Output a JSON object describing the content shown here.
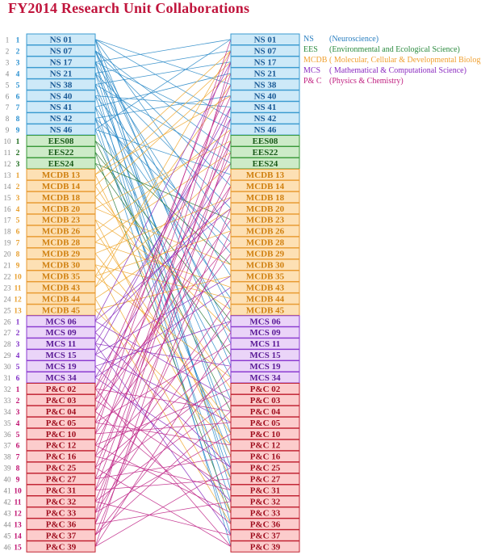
{
  "title": "FY2014  Research Unit Collaborations",
  "legend": [
    {
      "abbr": "NS",
      "desc": "(Neuroscience)",
      "color": "#2a7fc0"
    },
    {
      "abbr": "EES",
      "desc": "(Environmental and Ecological Science)",
      "color": "#2b8a3e"
    },
    {
      "abbr": "MCDB",
      "desc": "( Molecular, Cellular & Developmental Biology)",
      "color": "#f0a030"
    },
    {
      "abbr": "MCS",
      "desc": "( Mathematical & Computational Science)",
      "color": "#8a2ac0"
    },
    {
      "abbr": "P& C",
      "desc": "(Physics & Chemistry)",
      "color": "#c02080"
    }
  ],
  "groups": {
    "NS": {
      "fill": "#cde9f8",
      "stroke": "#3a9ad0",
      "text": "#1a5a96",
      "index_color": "#2a90d0",
      "line": "#2a8ac8"
    },
    "EES": {
      "fill": "#cdebc8",
      "stroke": "#3a9a3a",
      "text": "#1a5a1a",
      "index_color": "#1a6a1a",
      "line": "#2b7a3a"
    },
    "MCDB": {
      "fill": "#fde0b4",
      "stroke": "#e89a30",
      "text": "#d08010",
      "index_color": "#e8a030",
      "line": "#f0a830"
    },
    "MCS": {
      "fill": "#ead4f8",
      "stroke": "#8a3ad0",
      "text": "#5a1a96",
      "index_color": "#8030c8",
      "line": "#8a30c0"
    },
    "PC": {
      "fill": "#fccccc",
      "stroke": "#c02030",
      "text": "#a01020",
      "index_color": "#c01070",
      "line": "#c02888"
    }
  },
  "units": [
    {
      "label": "NS 01",
      "group": "NS",
      "idx": "1"
    },
    {
      "label": "NS 07",
      "group": "NS",
      "idx": "2"
    },
    {
      "label": "NS 17",
      "group": "NS",
      "idx": "3"
    },
    {
      "label": "NS 21",
      "group": "NS",
      "idx": "4"
    },
    {
      "label": "NS 38",
      "group": "NS",
      "idx": "5"
    },
    {
      "label": "NS 40",
      "group": "NS",
      "idx": "6"
    },
    {
      "label": "NS 41",
      "group": "NS",
      "idx": "7"
    },
    {
      "label": "NS 42",
      "group": "NS",
      "idx": "8"
    },
    {
      "label": "NS 46",
      "group": "NS",
      "idx": "9"
    },
    {
      "label": "EES08",
      "group": "EES",
      "idx": "1"
    },
    {
      "label": "EES22",
      "group": "EES",
      "idx": "2"
    },
    {
      "label": "EES24",
      "group": "EES",
      "idx": "3"
    },
    {
      "label": "MCDB 13",
      "group": "MCDB",
      "idx": "1"
    },
    {
      "label": "MCDB 14",
      "group": "MCDB",
      "idx": "2"
    },
    {
      "label": "MCDB 18",
      "group": "MCDB",
      "idx": "3"
    },
    {
      "label": "MCDB 20",
      "group": "MCDB",
      "idx": "4"
    },
    {
      "label": "MCDB 23",
      "group": "MCDB",
      "idx": "5"
    },
    {
      "label": "MCDB 26",
      "group": "MCDB",
      "idx": "6"
    },
    {
      "label": "MCDB 28",
      "group": "MCDB",
      "idx": "7"
    },
    {
      "label": "MCDB 29",
      "group": "MCDB",
      "idx": "8"
    },
    {
      "label": "MCDB 30",
      "group": "MCDB",
      "idx": "9"
    },
    {
      "label": "MCDB 35",
      "group": "MCDB",
      "idx": "10"
    },
    {
      "label": "MCDB 43",
      "group": "MCDB",
      "idx": "11"
    },
    {
      "label": "MCDB 44",
      "group": "MCDB",
      "idx": "12"
    },
    {
      "label": "MCDB 45",
      "group": "MCDB",
      "idx": "13"
    },
    {
      "label": "MCS 06",
      "group": "MCS",
      "idx": "1"
    },
    {
      "label": "MCS 09",
      "group": "MCS",
      "idx": "2"
    },
    {
      "label": "MCS 11",
      "group": "MCS",
      "idx": "3"
    },
    {
      "label": "MCS 15",
      "group": "MCS",
      "idx": "4"
    },
    {
      "label": "MCS 19",
      "group": "MCS",
      "idx": "5"
    },
    {
      "label": "MCS 34",
      "group": "MCS",
      "idx": "6"
    },
    {
      "label": "P&C 02",
      "group": "PC",
      "idx": "1"
    },
    {
      "label": "P&C 03",
      "group": "PC",
      "idx": "2"
    },
    {
      "label": "P&C 04",
      "group": "PC",
      "idx": "3"
    },
    {
      "label": "P&C 05",
      "group": "PC",
      "idx": "4"
    },
    {
      "label": "P&C 10",
      "group": "PC",
      "idx": "5"
    },
    {
      "label": "P&C 12",
      "group": "PC",
      "idx": "6"
    },
    {
      "label": "P&C 16",
      "group": "PC",
      "idx": "7"
    },
    {
      "label": "P&C 25",
      "group": "PC",
      "idx": "8"
    },
    {
      "label": "P&C 27",
      "group": "PC",
      "idx": "9"
    },
    {
      "label": "P&C 31",
      "group": "PC",
      "idx": "10"
    },
    {
      "label": "P&C 32",
      "group": "PC",
      "idx": "11"
    },
    {
      "label": "P&C 33",
      "group": "PC",
      "idx": "12"
    },
    {
      "label": "P&C 36",
      "group": "PC",
      "idx": "13"
    },
    {
      "label": "P&C 37",
      "group": "PC",
      "idx": "14"
    },
    {
      "label": "P&C 39",
      "group": "PC",
      "idx": "15"
    }
  ],
  "links": [
    [
      1,
      5
    ],
    [
      1,
      8
    ],
    [
      1,
      18
    ],
    [
      1,
      30
    ],
    [
      1,
      41
    ],
    [
      2,
      11
    ],
    [
      2,
      14
    ],
    [
      2,
      25
    ],
    [
      2,
      28
    ],
    [
      2,
      37
    ],
    [
      3,
      1
    ],
    [
      3,
      9
    ],
    [
      3,
      22
    ],
    [
      3,
      36
    ],
    [
      3,
      44
    ],
    [
      4,
      2
    ],
    [
      4,
      16
    ],
    [
      4,
      27
    ],
    [
      4,
      40
    ],
    [
      5,
      3
    ],
    [
      5,
      12
    ],
    [
      5,
      33
    ],
    [
      5,
      46
    ],
    [
      6,
      7
    ],
    [
      6,
      20
    ],
    [
      6,
      39
    ],
    [
      7,
      4
    ],
    [
      7,
      24
    ],
    [
      7,
      42
    ],
    [
      8,
      6
    ],
    [
      8,
      19
    ],
    [
      8,
      31
    ],
    [
      8,
      45
    ],
    [
      9,
      1
    ],
    [
      9,
      13
    ],
    [
      9,
      38
    ],
    [
      10,
      21
    ],
    [
      10,
      34
    ],
    [
      11,
      26
    ],
    [
      11,
      43
    ],
    [
      12,
      17
    ],
    [
      12,
      29
    ],
    [
      13,
      2
    ],
    [
      13,
      6
    ],
    [
      13,
      38
    ],
    [
      14,
      3
    ],
    [
      14,
      32
    ],
    [
      15,
      4
    ],
    [
      15,
      27
    ],
    [
      16,
      10
    ],
    [
      16,
      21
    ],
    [
      17,
      25
    ],
    [
      17,
      40
    ],
    [
      18,
      9
    ],
    [
      18,
      36
    ],
    [
      19,
      11
    ],
    [
      19,
      23
    ],
    [
      20,
      15
    ],
    [
      20,
      35
    ],
    [
      21,
      24
    ],
    [
      21,
      43
    ],
    [
      22,
      5
    ],
    [
      22,
      18
    ],
    [
      22,
      31
    ],
    [
      23,
      2
    ],
    [
      23,
      12
    ],
    [
      24,
      16
    ],
    [
      24,
      44
    ],
    [
      25,
      22
    ],
    [
      25,
      37
    ],
    [
      26,
      3
    ],
    [
      26,
      16
    ],
    [
      26,
      33
    ],
    [
      27,
      15
    ],
    [
      27,
      39
    ],
    [
      28,
      8
    ],
    [
      28,
      30
    ],
    [
      28,
      45
    ],
    [
      29,
      7
    ],
    [
      29,
      22
    ],
    [
      29,
      35
    ],
    [
      30,
      26
    ],
    [
      30,
      42
    ],
    [
      31,
      12
    ],
    [
      31,
      23
    ],
    [
      31,
      39
    ],
    [
      32,
      5
    ],
    [
      32,
      14
    ],
    [
      32,
      34
    ],
    [
      32,
      46
    ],
    [
      33,
      6
    ],
    [
      33,
      19
    ],
    [
      33,
      41
    ],
    [
      34,
      2
    ],
    [
      34,
      17
    ],
    [
      34,
      44
    ],
    [
      35,
      10
    ],
    [
      35,
      28
    ],
    [
      35,
      37
    ],
    [
      36,
      1
    ],
    [
      36,
      20
    ],
    [
      36,
      35
    ],
    [
      37,
      13
    ],
    [
      37,
      32
    ],
    [
      37,
      43
    ],
    [
      38,
      4
    ],
    [
      38,
      26
    ],
    [
      38,
      41
    ],
    [
      39,
      11
    ],
    [
      39,
      29
    ],
    [
      39,
      46
    ],
    [
      40,
      7
    ],
    [
      40,
      31
    ],
    [
      40,
      38
    ],
    [
      41,
      9
    ],
    [
      41,
      24
    ],
    [
      41,
      40
    ],
    [
      42,
      14
    ],
    [
      42,
      33
    ],
    [
      42,
      45
    ],
    [
      43,
      8
    ],
    [
      43,
      25
    ],
    [
      43,
      36
    ],
    [
      44,
      3
    ],
    [
      44,
      18
    ],
    [
      44,
      42
    ],
    [
      45,
      16
    ],
    [
      45,
      30
    ],
    [
      45,
      34
    ],
    [
      46,
      10
    ],
    [
      46,
      27
    ],
    [
      46,
      39
    ]
  ]
}
